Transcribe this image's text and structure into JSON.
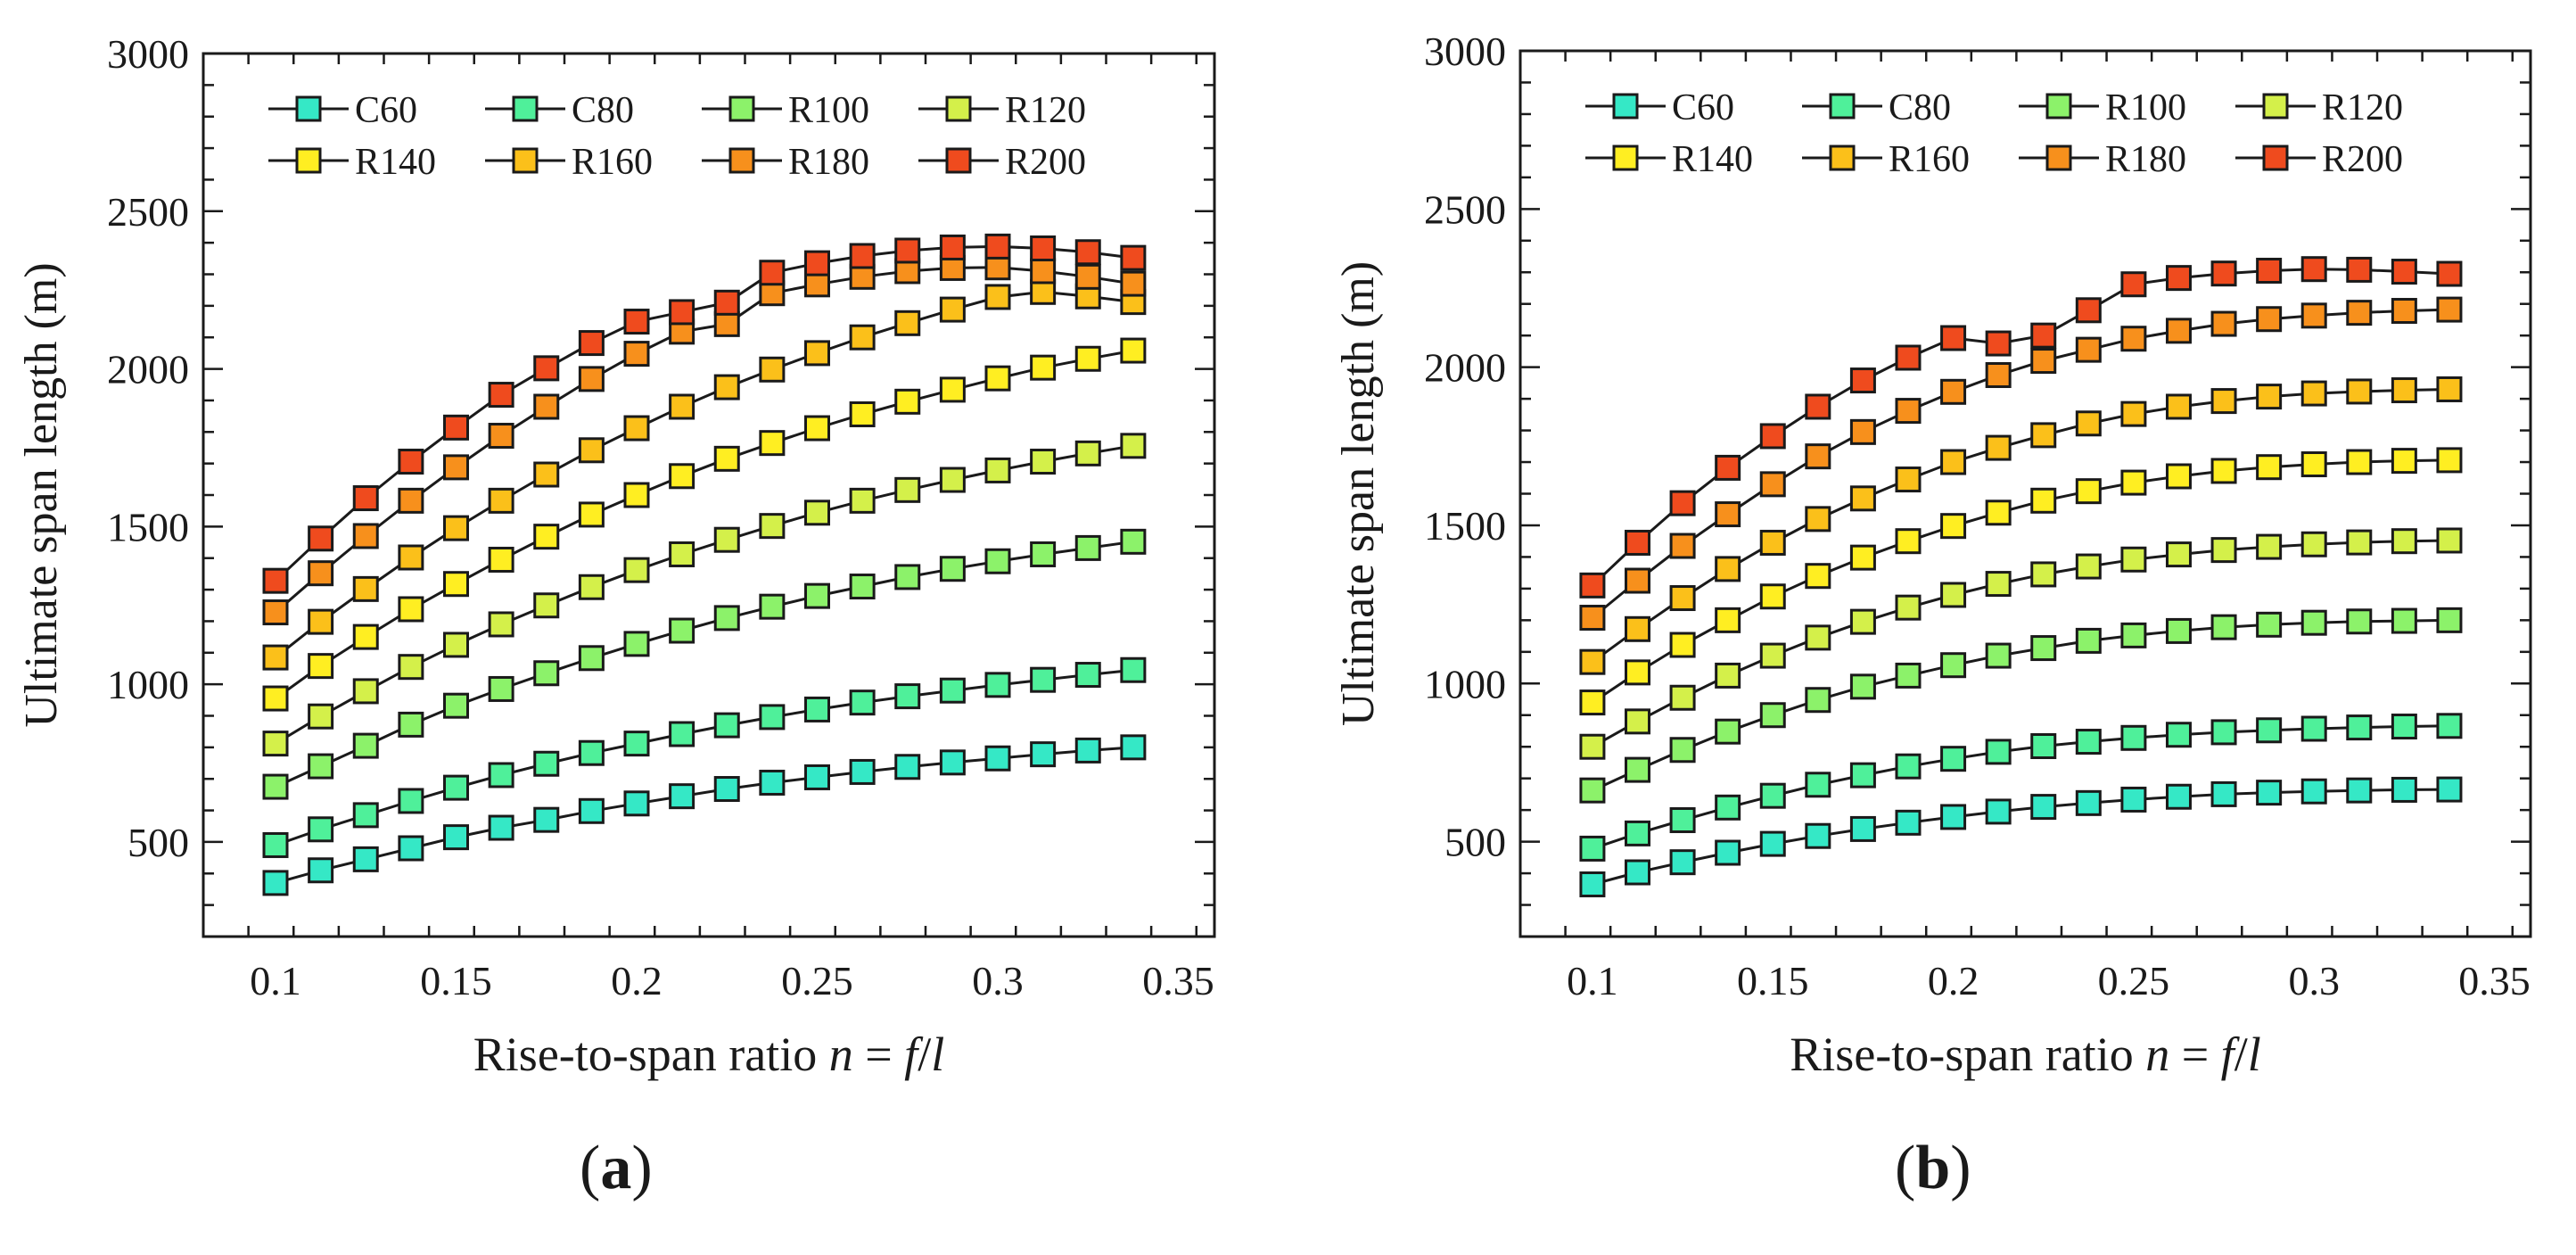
{
  "figure": {
    "panels": [
      {
        "label_open": "(",
        "label_letter": "a",
        "label_close": ")"
      },
      {
        "label_open": "(",
        "label_letter": "b",
        "label_close": ")"
      }
    ]
  },
  "chart_data": [
    {
      "type": "line",
      "panel": "a",
      "xlabel_prefix": "Rise-to-span ratio",
      "xlabel_var": "n",
      "xlabel_eq": " = ",
      "xlabel_f": "f",
      "xlabel_slash": "/",
      "xlabel_l": "l",
      "ylabel": "Ultimate span length (m)",
      "xlim": [
        0.08,
        0.36
      ],
      "ylim": [
        200,
        3000
      ],
      "xticks": [
        0.1,
        0.15,
        0.2,
        0.25,
        0.3,
        0.35
      ],
      "xtick_labels": [
        "0.1",
        "0.15",
        "0.2",
        "0.25",
        "0.3",
        "0.35"
      ],
      "yticks": [
        500,
        1000,
        1500,
        2000,
        2500,
        3000
      ],
      "ytick_labels": [
        "500",
        "1000",
        "1500",
        "2000",
        "2500",
        "3000"
      ],
      "legend_position": "top",
      "x": [
        0.1,
        0.1125,
        0.125,
        0.1375,
        0.15,
        0.1625,
        0.175,
        0.1875,
        0.2,
        0.2125,
        0.225,
        0.2375,
        0.25,
        0.2625,
        0.275,
        0.2875,
        0.3,
        0.3125,
        0.325,
        0.3375
      ],
      "series": [
        {
          "name": "C60",
          "color": "#35e8c6",
          "values": [
            370,
            410,
            445,
            480,
            515,
            545,
            570,
            598,
            622,
            645,
            668,
            688,
            705,
            722,
            738,
            752,
            765,
            778,
            790,
            800
          ]
        },
        {
          "name": "C80",
          "color": "#4ff09a",
          "values": [
            490,
            540,
            585,
            630,
            672,
            712,
            748,
            782,
            812,
            842,
            870,
            896,
            920,
            942,
            962,
            980,
            998,
            1014,
            1030,
            1045
          ]
        },
        {
          "name": "R100",
          "color": "#8cf26a",
          "values": [
            675,
            740,
            805,
            872,
            932,
            985,
            1035,
            1083,
            1128,
            1170,
            1210,
            1246,
            1280,
            1310,
            1340,
            1366,
            1390,
            1412,
            1432,
            1452
          ]
        },
        {
          "name": "R120",
          "color": "#d4f04a",
          "values": [
            812,
            898,
            978,
            1055,
            1125,
            1190,
            1250,
            1308,
            1362,
            1412,
            1458,
            1502,
            1544,
            1582,
            1616,
            1648,
            1678,
            1706,
            1732,
            1756
          ]
        },
        {
          "name": "R140",
          "color": "#ffee22",
          "values": [
            955,
            1058,
            1150,
            1238,
            1318,
            1395,
            1468,
            1538,
            1600,
            1660,
            1715,
            1765,
            1812,
            1856,
            1896,
            1934,
            1970,
            2004,
            2032,
            2058
          ]
        },
        {
          "name": "R160",
          "color": "#fbc01a",
          "values": [
            1085,
            1198,
            1302,
            1402,
            1495,
            1582,
            1665,
            1742,
            1812,
            1880,
            1942,
            1998,
            2050,
            2100,
            2145,
            2188,
            2228,
            2244,
            2230,
            2212
          ]
        },
        {
          "name": "R180",
          "color": "#f7901c",
          "values": [
            1228,
            1352,
            1470,
            1582,
            1688,
            1788,
            1880,
            1968,
            2048,
            2118,
            2142,
            2240,
            2268,
            2292,
            2310,
            2320,
            2322,
            2310,
            2292,
            2270
          ]
        },
        {
          "name": "R200",
          "color": "#ef4b1e",
          "values": [
            1328,
            1462,
            1590,
            1706,
            1814,
            1918,
            2002,
            2082,
            2150,
            2180,
            2210,
            2305,
            2335,
            2358,
            2375,
            2385,
            2388,
            2382,
            2370,
            2352
          ]
        }
      ]
    },
    {
      "type": "line",
      "panel": "b",
      "xlabel_prefix": "Rise-to-span ratio",
      "xlabel_var": "n",
      "xlabel_eq": " = ",
      "xlabel_f": "f",
      "xlabel_slash": "/",
      "xlabel_l": "l",
      "ylabel": "Ultimate span length (m)",
      "xlim": [
        0.08,
        0.36
      ],
      "ylim": [
        200,
        3000
      ],
      "xticks": [
        0.1,
        0.15,
        0.2,
        0.25,
        0.3,
        0.35
      ],
      "xtick_labels": [
        "0.1",
        "0.15",
        "0.2",
        "0.25",
        "0.3",
        "0.35"
      ],
      "yticks": [
        500,
        1000,
        1500,
        2000,
        2500,
        3000
      ],
      "ytick_labels": [
        "500",
        "1000",
        "1500",
        "2000",
        "2500",
        "3000"
      ],
      "legend_position": "top",
      "x": [
        0.1,
        0.1125,
        0.125,
        0.1375,
        0.15,
        0.1625,
        0.175,
        0.1875,
        0.2,
        0.2125,
        0.225,
        0.2375,
        0.25,
        0.2625,
        0.275,
        0.2875,
        0.3,
        0.3125,
        0.325,
        0.3375
      ],
      "series": [
        {
          "name": "C60",
          "color": "#35e8c6",
          "values": [
            365,
            403,
            435,
            465,
            493,
            518,
            540,
            560,
            578,
            595,
            610,
            622,
            633,
            642,
            650,
            655,
            659,
            662,
            664,
            665
          ]
        },
        {
          "name": "C80",
          "color": "#4ff09a",
          "values": [
            478,
            526,
            568,
            608,
            645,
            680,
            710,
            738,
            762,
            784,
            802,
            816,
            828,
            838,
            846,
            852,
            857,
            861,
            864,
            866
          ]
        },
        {
          "name": "R100",
          "color": "#8cf26a",
          "values": [
            662,
            727,
            790,
            848,
            900,
            948,
            990,
            1025,
            1058,
            1088,
            1112,
            1135,
            1152,
            1166,
            1178,
            1186,
            1192,
            1196,
            1198,
            1200
          ]
        },
        {
          "name": "R120",
          "color": "#d4f04a",
          "values": [
            800,
            880,
            955,
            1025,
            1088,
            1145,
            1195,
            1240,
            1280,
            1315,
            1345,
            1370,
            1392,
            1408,
            1422,
            1432,
            1440,
            1446,
            1450,
            1452
          ]
        },
        {
          "name": "R140",
          "color": "#ffee22",
          "values": [
            940,
            1035,
            1122,
            1200,
            1275,
            1340,
            1398,
            1450,
            1498,
            1540,
            1578,
            1608,
            1635,
            1655,
            1672,
            1684,
            1693,
            1700,
            1704,
            1706
          ]
        },
        {
          "name": "R160",
          "color": "#fbc01a",
          "values": [
            1068,
            1172,
            1270,
            1362,
            1445,
            1520,
            1585,
            1645,
            1700,
            1745,
            1785,
            1822,
            1852,
            1875,
            1893,
            1907,
            1917,
            1923,
            1927,
            1930
          ]
        },
        {
          "name": "R180",
          "color": "#f7901c",
          "values": [
            1208,
            1325,
            1435,
            1535,
            1630,
            1718,
            1795,
            1862,
            1922,
            1975,
            2020,
            2055,
            2090,
            2115,
            2137,
            2152,
            2163,
            2172,
            2178,
            2182
          ]
        },
        {
          "name": "R200",
          "color": "#ef4b1e",
          "values": [
            1310,
            1445,
            1570,
            1682,
            1782,
            1875,
            1958,
            2030,
            2092,
            2075,
            2100,
            2180,
            2262,
            2282,
            2296,
            2305,
            2310,
            2308,
            2302,
            2295
          ]
        }
      ]
    }
  ]
}
